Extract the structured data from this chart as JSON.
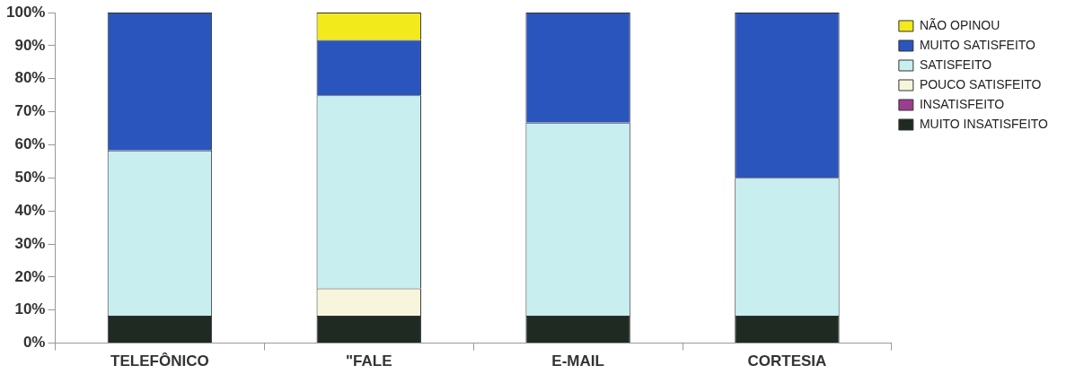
{
  "chart_data": {
    "type": "bar",
    "stacked": true,
    "categories": [
      "TELEFÔNICO",
      "\"FALE",
      "E-MAIL",
      "CORTESIA"
    ],
    "series": [
      {
        "name": "MUITO INSATISFEITO",
        "color": "#1e2a22",
        "values": [
          8.3,
          8.3,
          8.3,
          8.3
        ]
      },
      {
        "name": "INSATISFEITO",
        "color": "#9a3f8e",
        "values": [
          0,
          0,
          0,
          0
        ]
      },
      {
        "name": "POUCO SATISFEITO",
        "color": "#f7f6dc",
        "values": [
          0,
          8.3,
          0,
          0
        ]
      },
      {
        "name": "SATISFEITO",
        "color": "#c8eef0",
        "values": [
          50,
          58.4,
          58.4,
          41.7
        ]
      },
      {
        "name": "MUITO SATISFEITO",
        "color": "#2a55bd",
        "values": [
          41.7,
          16.7,
          33.3,
          50
        ]
      },
      {
        "name": "NÃO OPINOU",
        "color": "#f2ea1a",
        "values": [
          0,
          8.3,
          0,
          0
        ]
      }
    ],
    "ylim": [
      0,
      100
    ],
    "yticks": [
      {
        "value": 0,
        "label": "0%"
      },
      {
        "value": 10,
        "label": "10%"
      },
      {
        "value": 20,
        "label": "20%"
      },
      {
        "value": 30,
        "label": "30%"
      },
      {
        "value": 40,
        "label": "40%"
      },
      {
        "value": 50,
        "label": "50%"
      },
      {
        "value": 60,
        "label": "60%"
      },
      {
        "value": 70,
        "label": "70%"
      },
      {
        "value": 80,
        "label": "80%"
      },
      {
        "value": 90,
        "label": "90%"
      },
      {
        "value": 100,
        "label": "100%"
      }
    ],
    "grid": false,
    "legend": "right"
  }
}
